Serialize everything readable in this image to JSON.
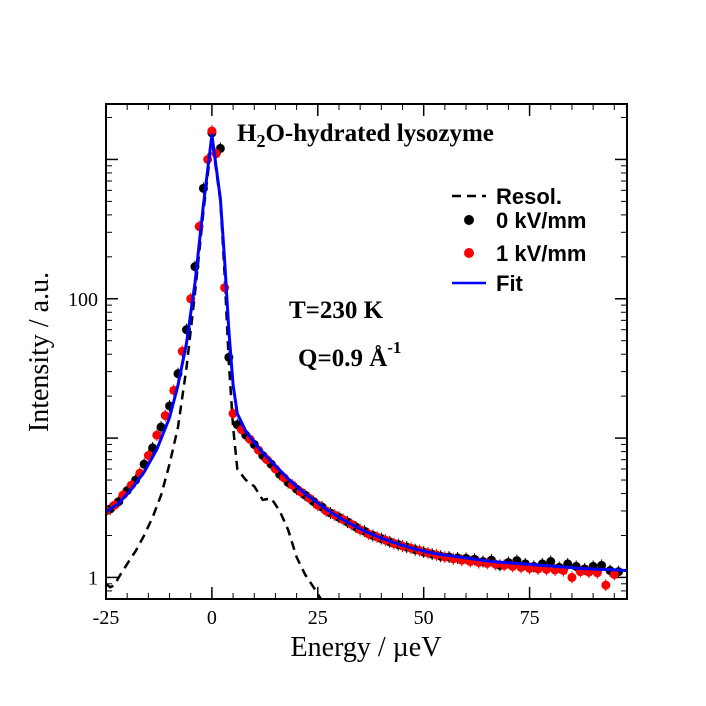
{
  "chart_data": {
    "type": "scatter",
    "title": "H2O-hydrated lysozyme",
    "title_parts": {
      "pre": "H",
      "sub": "2",
      "post": "O-hydrated lysozyme"
    },
    "xlabel": "Energy / µeV",
    "ylabel": "Intensity / a.u.",
    "xlim": [
      -25,
      98
    ],
    "ylim": [
      0.7,
      2500
    ],
    "yscale": "log",
    "x_ticks": [
      -25,
      0,
      25,
      50,
      75
    ],
    "x_tick_labels": [
      "-25",
      "0",
      "25",
      "50",
      "75"
    ],
    "y_ticks": [
      1,
      100
    ],
    "y_tick_labels": [
      "1",
      "100"
    ],
    "annotations": {
      "temperature": "T=230 K",
      "q_main": "Q=0.9 Å",
      "q_sup": "-1"
    },
    "legend": {
      "position": "top-right",
      "entries": [
        {
          "label": "Resol.",
          "color": "#000000",
          "style": "dashed-line"
        },
        {
          "label": "0 kV/mm",
          "color": "#000000",
          "style": "marker"
        },
        {
          "label": "1 kV/mm",
          "color": "#ff0000",
          "style": "marker"
        },
        {
          "label": "Fit",
          "color": "#0000ff",
          "style": "line"
        }
      ]
    },
    "series": [
      {
        "name": "Resol.",
        "style": "dashed",
        "color": "#000000",
        "x": [
          -25,
          -24,
          -23,
          -22,
          -20,
          -18,
          -16,
          -14,
          -12,
          -10,
          -8,
          -6,
          -4,
          -2,
          0,
          2,
          3,
          4,
          5,
          6,
          8,
          10,
          12,
          14,
          16,
          18,
          20,
          22,
          24,
          26
        ],
        "y": [
          0.9,
          0.85,
          0.88,
          1.0,
          1.25,
          1.55,
          2.0,
          2.7,
          3.9,
          6.5,
          12,
          32,
          110,
          420,
          1400,
          500,
          150,
          35,
          12,
          6,
          5,
          4.5,
          3.6,
          3.7,
          3.0,
          2.2,
          1.4,
          1.05,
          0.85,
          0.68
        ]
      },
      {
        "name": "0 kV/mm",
        "style": "marker",
        "color": "#000000",
        "x": [
          -24,
          -22,
          -20,
          -18,
          -16,
          -14,
          -12,
          -10,
          -8,
          -6,
          -4,
          -2,
          0,
          2,
          4,
          6,
          8,
          10,
          12,
          14,
          16,
          18,
          20,
          22,
          24,
          26,
          28,
          30,
          32,
          34,
          36,
          38,
          40,
          42,
          44,
          46,
          48,
          50,
          52,
          54,
          56,
          58,
          60,
          62,
          64,
          66,
          68,
          70,
          72,
          74,
          76,
          78,
          80,
          82,
          84,
          86,
          88,
          90,
          92,
          94,
          96
        ],
        "y": [
          3.1,
          3.5,
          4.2,
          5.0,
          6.5,
          8.5,
          12,
          17,
          29,
          60,
          170,
          620,
          1550,
          1200,
          38,
          12.5,
          10.5,
          9.0,
          7.5,
          6.5,
          5.5,
          4.8,
          4.3,
          3.9,
          3.5,
          3.2,
          2.9,
          2.7,
          2.5,
          2.3,
          2.15,
          2.0,
          1.9,
          1.8,
          1.72,
          1.65,
          1.58,
          1.52,
          1.47,
          1.42,
          1.4,
          1.38,
          1.37,
          1.35,
          1.3,
          1.33,
          1.22,
          1.28,
          1.32,
          1.25,
          1.2,
          1.25,
          1.3,
          1.18,
          1.25,
          1.2,
          1.15,
          1.2,
          1.22,
          1.12,
          1.1
        ]
      },
      {
        "name": "1 kV/mm",
        "style": "marker",
        "color": "#ff0000",
        "x": [
          -25,
          -23,
          -21,
          -19,
          -17,
          -15,
          -13,
          -11,
          -9,
          -7,
          -5,
          -3,
          -1,
          0,
          1,
          3,
          5,
          7,
          9,
          11,
          13,
          15,
          17,
          19,
          21,
          23,
          25,
          27,
          29,
          31,
          33,
          35,
          37,
          39,
          41,
          43,
          45,
          47,
          49,
          51,
          53,
          55,
          57,
          59,
          61,
          63,
          65,
          67,
          69,
          71,
          73,
          75,
          77,
          79,
          81,
          83,
          85,
          87,
          89,
          91,
          93,
          95
        ],
        "y": [
          3.0,
          3.3,
          3.9,
          4.6,
          5.6,
          7.5,
          10.5,
          14.5,
          22,
          42,
          100,
          330,
          1000,
          1600,
          1100,
          120,
          15,
          11.5,
          9.8,
          8.2,
          7.0,
          6.0,
          5.2,
          4.6,
          4.1,
          3.7,
          3.3,
          3.0,
          2.8,
          2.6,
          2.4,
          2.2,
          2.05,
          1.95,
          1.85,
          1.75,
          1.68,
          1.62,
          1.56,
          1.5,
          1.45,
          1.4,
          1.36,
          1.33,
          1.3,
          1.28,
          1.26,
          1.24,
          1.22,
          1.2,
          1.18,
          1.16,
          1.15,
          1.14,
          1.13,
          1.12,
          1.0,
          1.1,
          1.09,
          1.08,
          0.88,
          1.05
        ]
      },
      {
        "name": "Fit",
        "style": "line",
        "color": "#0000ff",
        "x": [
          -25,
          -22,
          -19,
          -16,
          -13,
          -10,
          -8,
          -6,
          -4,
          -2,
          0,
          2,
          3,
          4,
          5,
          6,
          8,
          10,
          12,
          14,
          16,
          18,
          20,
          22,
          24,
          26,
          28,
          30,
          33,
          36,
          39,
          42,
          45,
          48,
          51,
          54,
          57,
          60,
          63,
          66,
          69,
          72,
          75,
          78,
          81,
          84,
          87,
          90,
          93,
          96,
          98
        ],
        "y": [
          2.95,
          3.4,
          4.3,
          5.7,
          8.3,
          14,
          24,
          48,
          130,
          470,
          1500,
          520,
          190,
          60,
          24,
          15,
          11.2,
          9.3,
          7.9,
          6.8,
          5.9,
          5.1,
          4.5,
          4.0,
          3.6,
          3.25,
          2.95,
          2.7,
          2.4,
          2.15,
          1.97,
          1.82,
          1.7,
          1.6,
          1.52,
          1.46,
          1.42,
          1.38,
          1.34,
          1.3,
          1.28,
          1.26,
          1.24,
          1.22,
          1.2,
          1.18,
          1.16,
          1.15,
          1.14,
          1.13,
          1.12
        ]
      }
    ]
  }
}
